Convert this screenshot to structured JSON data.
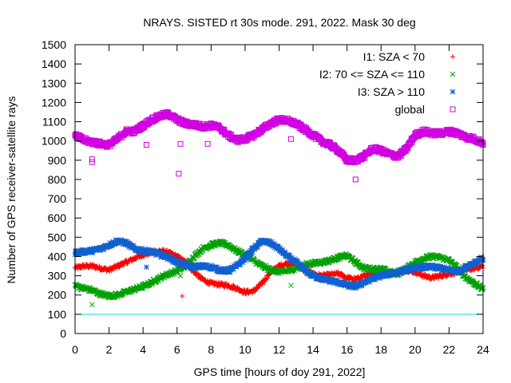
{
  "chart_data": {
    "type": "scatter",
    "title": "NRAYS. SISTED rt 30s mode. 291, 2022. Mask 30 deg",
    "xlabel": "GPS time [hours of doy 291, 2022]",
    "ylabel": "Number of GPS receiver-satellite rays",
    "xlim": [
      0,
      24
    ],
    "ylim": [
      0,
      1500
    ],
    "xticks": [
      0,
      2,
      4,
      6,
      8,
      10,
      12,
      14,
      16,
      18,
      20,
      22,
      24
    ],
    "yticks": [
      0,
      100,
      200,
      300,
      400,
      500,
      600,
      700,
      800,
      900,
      1000,
      1100,
      1200,
      1300,
      1400,
      1500
    ],
    "grid": false,
    "legend_position": "top-right",
    "threshold_line": {
      "y": 100,
      "color": "#00e0e0"
    },
    "series": [
      {
        "name": "I1: SZA < 70",
        "marker": "+",
        "color": "#ff0000",
        "x": [
          0,
          0.5,
          1,
          1.5,
          2,
          2.5,
          3,
          3.5,
          4,
          4.5,
          5,
          5.5,
          6,
          6.5,
          7,
          7.5,
          8,
          8.5,
          9,
          9.5,
          10,
          10.5,
          11,
          11.5,
          12,
          12.5,
          13,
          13.5,
          14,
          14.5,
          15,
          15.5,
          16,
          16.5,
          17,
          17.5,
          18,
          18.5,
          19,
          19.5,
          20,
          20.5,
          21,
          21.5,
          22,
          22.5,
          23,
          23.5,
          24
        ],
        "y": [
          340,
          350,
          350,
          340,
          330,
          350,
          370,
          390,
          410,
          420,
          430,
          420,
          400,
          370,
          320,
          280,
          260,
          255,
          250,
          235,
          215,
          220,
          260,
          320,
          350,
          365,
          360,
          330,
          310,
          300,
          305,
          310,
          290,
          280,
          300,
          310,
          315,
          310,
          320,
          330,
          320,
          300,
          290,
          300,
          310,
          320,
          330,
          340,
          350
        ],
        "outliers": [
          [
            6.3,
            195
          ],
          [
            7.8,
            265
          ]
        ]
      },
      {
        "name": "I2: 70 <= SZA <= 110",
        "marker": "x",
        "color": "#00a000",
        "x": [
          0,
          0.5,
          1,
          1.5,
          2,
          2.5,
          3,
          3.5,
          4,
          4.5,
          5,
          5.5,
          6,
          6.5,
          7,
          7.5,
          8,
          8.5,
          9,
          9.5,
          10,
          10.5,
          11,
          11.5,
          12,
          12.5,
          13,
          13.5,
          14,
          14.5,
          15,
          15.5,
          16,
          16.5,
          17,
          17.5,
          18,
          18.5,
          19,
          19.5,
          20,
          20.5,
          21,
          21.5,
          22,
          22.5,
          23,
          23.5,
          24
        ],
        "y": [
          250,
          235,
          225,
          205,
          195,
          200,
          215,
          230,
          245,
          265,
          290,
          310,
          325,
          350,
          400,
          440,
          460,
          470,
          460,
          430,
          410,
          380,
          350,
          330,
          320,
          325,
          340,
          355,
          365,
          370,
          380,
          395,
          405,
          370,
          340,
          335,
          335,
          320,
          310,
          340,
          370,
          390,
          400,
          395,
          380,
          340,
          290,
          260,
          230
        ],
        "outliers": [
          [
            1,
            150
          ],
          [
            6.2,
            300
          ],
          [
            12.7,
            250
          ]
        ]
      },
      {
        "name": "I3: SZA > 110",
        "marker": "*",
        "color": "#1060d0",
        "x": [
          0,
          0.5,
          1,
          1.5,
          2,
          2.5,
          3,
          3.5,
          4,
          4.5,
          5,
          5.5,
          6,
          6.5,
          7,
          7.5,
          8,
          8.5,
          9,
          9.5,
          10,
          10.5,
          11,
          11.5,
          12,
          12.5,
          13,
          13.5,
          14,
          14.5,
          15,
          15.5,
          16,
          16.5,
          17,
          17.5,
          18,
          18.5,
          19,
          19.5,
          20,
          20.5,
          21,
          21.5,
          22,
          22.5,
          23,
          23.5,
          24
        ],
        "y": [
          420,
          425,
          430,
          440,
          460,
          480,
          470,
          440,
          430,
          425,
          410,
          395,
          370,
          355,
          345,
          350,
          345,
          330,
          325,
          350,
          390,
          440,
          480,
          470,
          440,
          400,
          370,
          330,
          300,
          285,
          275,
          265,
          250,
          245,
          265,
          285,
          300,
          310,
          320,
          330,
          340,
          345,
          345,
          340,
          330,
          320,
          345,
          370,
          390
        ],
        "outliers": [
          [
            4.2,
            345
          ],
          [
            15,
            270
          ]
        ]
      },
      {
        "name": "global",
        "marker": "square",
        "color": "#d000e0",
        "x": [
          0,
          0.5,
          1,
          1.5,
          2,
          2.5,
          3,
          3.5,
          4,
          4.5,
          5,
          5.5,
          6,
          6.5,
          7,
          7.5,
          8,
          8.5,
          9,
          9.5,
          10,
          10.5,
          11,
          11.5,
          12,
          12.5,
          13,
          13.5,
          14,
          14.5,
          15,
          15.5,
          16,
          16.5,
          17,
          17.5,
          18,
          18.5,
          19,
          19.5,
          20,
          20.5,
          21,
          21.5,
          22,
          22.5,
          23,
          23.5,
          24
        ],
        "y": [
          1030,
          1005,
          995,
          985,
          980,
          1010,
          1050,
          1050,
          1080,
          1110,
          1130,
          1140,
          1110,
          1090,
          1085,
          1075,
          1080,
          1070,
          1030,
          1005,
          1010,
          1030,
          1060,
          1090,
          1110,
          1105,
          1090,
          1060,
          1030,
          1000,
          980,
          950,
          900,
          900,
          920,
          960,
          950,
          930,
          920,
          960,
          1030,
          1050,
          1040,
          1040,
          1050,
          1040,
          1020,
          1010,
          990
        ],
        "outliers": [
          [
            1,
            890
          ],
          [
            1,
            905
          ],
          [
            4.2,
            980
          ],
          [
            6.1,
            830
          ],
          [
            6.2,
            985
          ],
          [
            7.8,
            985
          ],
          [
            12.7,
            1010
          ],
          [
            16.5,
            800
          ]
        ]
      }
    ]
  }
}
